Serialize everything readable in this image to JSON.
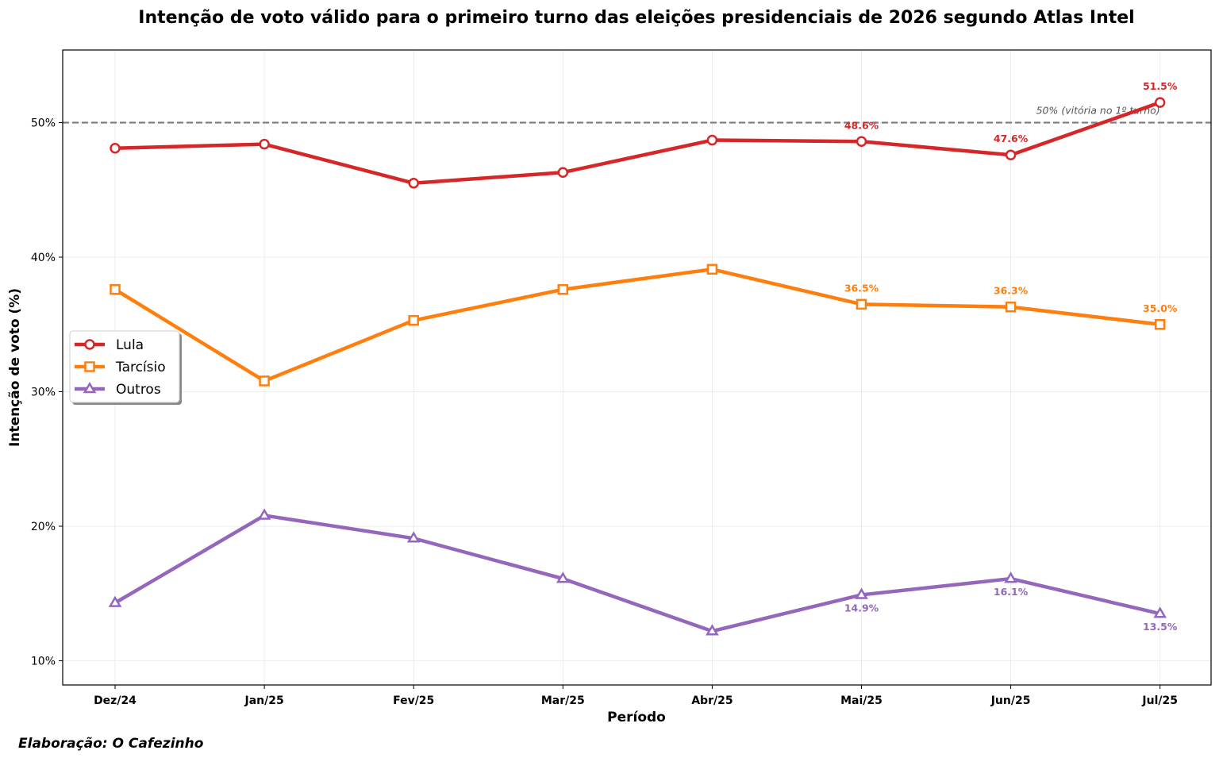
{
  "chart_data": {
    "type": "line",
    "title": "Intenção de voto válido para o primeiro turno das eleições presidenciais de 2026 segundo Atlas Intel",
    "xlabel": "Período",
    "ylabel": "Intenção de voto (%)",
    "categories": [
      "Dez/24",
      "Jan/25",
      "Fev/25",
      "Mar/25",
      "Abr/25",
      "Mai/25",
      "Jun/25",
      "Jul/25"
    ],
    "ylim": [
      8.2,
      55.4
    ],
    "yticks": [
      10,
      20,
      30,
      40,
      50
    ],
    "ytick_labels": [
      "10%",
      "20%",
      "30%",
      "40%",
      "50%"
    ],
    "grid": true,
    "legend_position": "center-left",
    "series": [
      {
        "name": "Lula",
        "color": "#d62728",
        "marker": "circle",
        "values": [
          48.1,
          48.4,
          45.5,
          46.3,
          48.7,
          48.6,
          47.6,
          51.5
        ],
        "labels": [
          null,
          null,
          null,
          null,
          null,
          "48.6%",
          "47.6%",
          "51.5%"
        ],
        "label_position": "above"
      },
      {
        "name": "Tarcísio",
        "color": "#ff7f0e",
        "marker": "square",
        "values": [
          37.6,
          30.8,
          35.3,
          37.6,
          39.1,
          36.5,
          36.3,
          35.0
        ],
        "labels": [
          null,
          null,
          null,
          null,
          null,
          "36.5%",
          "36.3%",
          "35.0%"
        ],
        "label_position": "above"
      },
      {
        "name": "Outros",
        "color": "#9467bd",
        "marker": "triangle",
        "values": [
          14.3,
          20.8,
          19.1,
          16.1,
          12.2,
          14.9,
          16.1,
          13.5
        ],
        "labels": [
          null,
          null,
          null,
          null,
          null,
          "14.9%",
          "16.1%",
          "13.5%"
        ],
        "label_position": "below"
      }
    ],
    "reference_line": {
      "value": 50,
      "label": "50% (vitória no 1º turno)",
      "color": "#808080",
      "style": "dashed"
    },
    "footnote": "Elaboração: O Cafezinho"
  }
}
